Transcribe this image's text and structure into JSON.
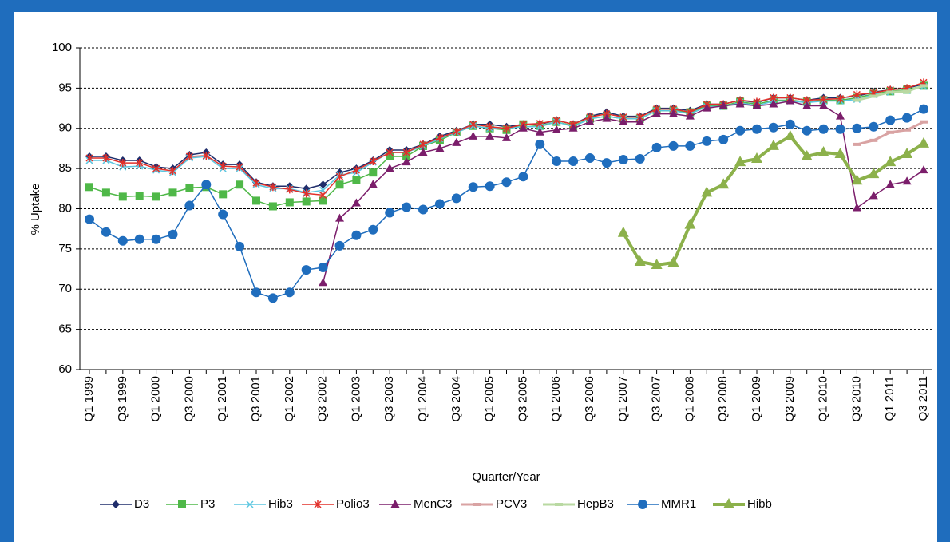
{
  "chart_data": {
    "type": "line",
    "x_label": "Quarter/Year",
    "y_label": "% Uptake",
    "ylim": [
      60,
      100
    ],
    "yticks": [
      60,
      65,
      70,
      75,
      80,
      85,
      90,
      95,
      100
    ],
    "grid": true,
    "legend": "bottom",
    "categories": [
      "Q1 1999",
      null,
      "Q3 1999",
      null,
      "Q1 2000",
      null,
      "Q3 2000",
      null,
      "Q1 2001",
      null,
      "Q3 2001",
      null,
      "Q1 2002",
      null,
      "Q3 2002",
      null,
      "Q1 2003",
      null,
      "Q3 2003",
      null,
      "Q1 2004",
      null,
      "Q3 2004",
      null,
      "Q1 2005",
      null,
      "Q3 2005",
      null,
      "Q1 2006",
      null,
      "Q3 2006",
      null,
      "Q1 2007",
      null,
      "Q3 2007",
      null,
      "Q1 2008",
      null,
      "Q3 2008",
      null,
      "Q1 2009",
      null,
      "Q3 2009",
      null,
      "Q1 2010",
      null,
      "Q3 2010",
      null,
      "Q1 2011",
      null,
      "Q3 2011"
    ],
    "series": [
      {
        "name": "D3",
        "color": "#1f2d6b",
        "marker": "diamond",
        "values": [
          86.5,
          86.5,
          86,
          86,
          85.2,
          85,
          86.7,
          87,
          85.5,
          85.5,
          83.3,
          82.8,
          82.8,
          82.5,
          83,
          84.5,
          85,
          86,
          87.3,
          87.3,
          88,
          89,
          89.7,
          90.5,
          90.5,
          90.2,
          90.5,
          90.5,
          91,
          90.5,
          91.5,
          92,
          91.5,
          91.5,
          92.5,
          92.5,
          92.2,
          93,
          93,
          93.5,
          93.2,
          93.8,
          93.8,
          93.5,
          93.8,
          93.8,
          94,
          94.5,
          94.8,
          95,
          95.5
        ]
      },
      {
        "name": "P3",
        "color": "#4fb848",
        "marker": "square",
        "values": [
          82.7,
          82,
          81.5,
          81.6,
          81.5,
          82,
          82.6,
          82.7,
          81.8,
          83,
          81,
          80.3,
          80.8,
          80.9,
          81,
          83,
          83.6,
          84.5,
          86.5,
          86.5,
          87.8,
          88.5,
          89.5,
          90.3,
          90,
          89.8,
          90.5,
          90.3,
          90.8,
          90.3,
          91.2,
          91.5,
          91.2,
          91.2,
          92.2,
          92.2,
          92,
          92.8,
          92.8,
          93.3,
          93,
          93.5,
          93.5,
          93.3,
          93.5,
          93.5,
          93.8,
          94.3,
          94.6,
          94.8,
          95.3
        ]
      },
      {
        "name": "Hib3",
        "color": "#5bc6e0",
        "marker": "x",
        "values": [
          86,
          86,
          85.2,
          85.3,
          84.8,
          84.5,
          86.3,
          86.5,
          85,
          85,
          83,
          82.5,
          82.5,
          82,
          82.3,
          84.2,
          84.5,
          85.8,
          87,
          87,
          87.8,
          88.7,
          89.5,
          90.3,
          90,
          90,
          90.2,
          90.2,
          90.8,
          90.2,
          91.2,
          91.5,
          91.2,
          91.2,
          92.2,
          92.2,
          91.8,
          92.7,
          92.7,
          93.2,
          92.8,
          93.4,
          93.4,
          93.2,
          93.4,
          93.4,
          93.6,
          94.2,
          94.5,
          94.7,
          95.2
        ]
      },
      {
        "name": "Polio3",
        "color": "#e2302a",
        "marker": "star",
        "values": [
          86.3,
          86.3,
          85.7,
          85.7,
          85,
          84.7,
          86.5,
          86.6,
          85.3,
          85.2,
          83.2,
          82.7,
          82.4,
          81.9,
          81.7,
          84,
          84.8,
          85.9,
          87,
          87,
          88,
          88.8,
          89.6,
          90.5,
          90.2,
          90,
          90.5,
          90.6,
          91,
          90.5,
          91.4,
          91.8,
          91.4,
          91.4,
          92.4,
          92.4,
          92,
          93,
          93,
          93.5,
          93.3,
          93.8,
          93.8,
          93.5,
          93.6,
          93.7,
          94.2,
          94.4,
          94.8,
          95,
          95.7
        ]
      },
      {
        "name": "MenC3",
        "color": "#7b1e6b",
        "marker": "triangle",
        "values": [
          null,
          null,
          null,
          null,
          null,
          null,
          null,
          null,
          null,
          null,
          null,
          null,
          null,
          null,
          70.8,
          78.8,
          80.7,
          83,
          85,
          85.8,
          87,
          87.5,
          88.2,
          89,
          89,
          88.8,
          90,
          89.5,
          89.8,
          90,
          90.8,
          91.2,
          90.8,
          90.8,
          91.8,
          91.8,
          91.5,
          92.5,
          92.8,
          93,
          92.8,
          93,
          93.4,
          92.8,
          92.8,
          91.5,
          80.1,
          81.6,
          83,
          83.4,
          84.8
        ]
      },
      {
        "name": "PCV3",
        "color": "#d9a3a3",
        "marker": "dash",
        "values": [
          null,
          null,
          null,
          null,
          null,
          null,
          null,
          null,
          null,
          null,
          null,
          null,
          null,
          null,
          null,
          null,
          null,
          null,
          null,
          null,
          null,
          null,
          null,
          null,
          null,
          null,
          null,
          null,
          null,
          null,
          null,
          null,
          null,
          null,
          null,
          null,
          null,
          null,
          null,
          null,
          null,
          null,
          null,
          null,
          null,
          null,
          88,
          88.5,
          89.5,
          89.8,
          90.8
        ]
      },
      {
        "name": "HepB3",
        "color": "#b9d9a2",
        "marker": "dash",
        "values": [
          null,
          null,
          null,
          null,
          null,
          null,
          null,
          null,
          null,
          null,
          null,
          null,
          null,
          null,
          null,
          null,
          null,
          null,
          null,
          null,
          null,
          null,
          null,
          null,
          null,
          null,
          null,
          null,
          null,
          null,
          null,
          null,
          null,
          null,
          null,
          null,
          null,
          null,
          null,
          null,
          null,
          null,
          null,
          null,
          null,
          null,
          93.5,
          94,
          94.5,
          94.6,
          95.3
        ]
      },
      {
        "name": "MMR1",
        "color": "#1f6dbd",
        "marker": "circle",
        "values": [
          78.7,
          77.1,
          76,
          76.2,
          76.2,
          76.8,
          80.4,
          83,
          79.3,
          75.3,
          69.6,
          68.9,
          69.6,
          72.4,
          72.7,
          75.4,
          76.7,
          77.4,
          79.5,
          80.2,
          79.9,
          80.6,
          81.3,
          82.7,
          82.8,
          83.3,
          84,
          88,
          85.9,
          85.9,
          86.3,
          85.7,
          86.1,
          86.2,
          87.6,
          87.8,
          87.8,
          88.4,
          88.6,
          89.7,
          89.9,
          90.1,
          90.5,
          89.7,
          89.9,
          89.9,
          90,
          90.2,
          91,
          91.3,
          92.4
        ]
      },
      {
        "name": "Hibb",
        "color": "#8cb14b",
        "marker": "bigtriangle",
        "values": [
          null,
          null,
          null,
          null,
          null,
          null,
          null,
          null,
          null,
          null,
          null,
          null,
          null,
          null,
          null,
          null,
          null,
          null,
          null,
          null,
          null,
          null,
          null,
          null,
          null,
          null,
          null,
          null,
          null,
          null,
          null,
          null,
          77,
          73.4,
          73,
          73.3,
          78,
          82,
          83,
          85.8,
          86.2,
          87.8,
          89,
          86.5,
          87,
          86.8,
          83.5,
          84.3,
          85.8,
          86.8,
          88.1
        ]
      }
    ]
  }
}
